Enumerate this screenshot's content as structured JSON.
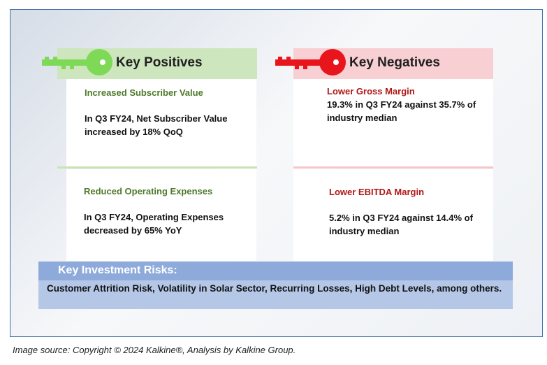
{
  "positives": {
    "header": "Key Positives",
    "items": [
      {
        "title": "Increased Subscriber Value",
        "body": "In Q3 FY24, Net Subscriber Value increased by 18% QoQ"
      },
      {
        "title": "Reduced Operating Expenses",
        "body": "In Q3 FY24, Operating Expenses decreased by 65% YoY"
      }
    ]
  },
  "negatives": {
    "header": "Key Negatives",
    "items": [
      {
        "title": "Lower Gross Margin",
        "body": "19.3% in Q3 FY24 against 35.7% of industry median"
      },
      {
        "title": "Lower EBITDA Margin",
        "body": "5.2% in Q3 FY24 against 14.4% of industry median"
      }
    ]
  },
  "risks": {
    "header": "Key Investment Risks:",
    "body": "Customer Attrition Risk, Volatility in Solar Sector, Recurring Losses, High Debt Levels, among others."
  },
  "footer": {
    "source": "Image source: Copyright © 2024 Kalkine®, Analysis by Kalkine Group."
  },
  "colors": {
    "positive_accent": "#7ed957",
    "negative_accent": "#e8161c",
    "positive_header_bg": "#cde6bd",
    "negative_header_bg": "#f8cfd3",
    "risk_header_bg": "#8eaadb",
    "risk_body_bg": "#b4c7e7"
  },
  "icons": {
    "positives": "key-icon",
    "negatives": "key-icon"
  }
}
